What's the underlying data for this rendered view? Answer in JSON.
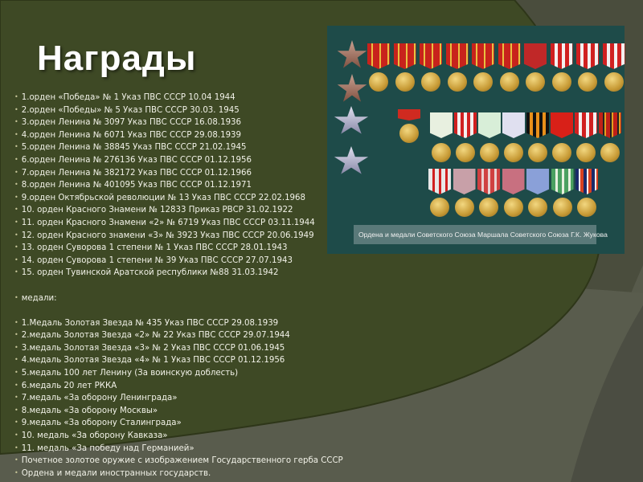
{
  "slide": {
    "title": "Награды",
    "orders": [
      "1.орден «Победа» № 1 Указ ПВС СССР  10.04 1944",
      "2.орден «Победы» № 5 Указ ПВС СССР  30.03. 1945",
      "3.орден Ленина № 3097 Указ ПВС СССР  16.08.1936",
      "4.орден Ленина № 6071 Указ ПВС СССР 29.08.1939",
      "5.орден Ленина № 38845 Указ ПВС СССР 21.02.1945",
      "6.орден Ленина № 276136 Указ ПВС СССР 01.12.1956",
      "7.орден Ленина № 382172 Указ ПВС СССР 01.12.1966",
      "8.орден Ленина № 401095 Указ ПВС СССР 01.12.1971",
      "9.орден Октябрьской революции № 13 Указ ПВС СССР  22.02.1968",
      "10.  орден Красного Знамени № 12833 Приказ РВСР  31.02.1922",
      "11.  орден Красного Знамени «2» № 6719 Указ ПВС СССР 03.11.1944",
      "12.  орден Красного знамени «3» № 3923 Указ ПВС СССР  20.06.1949",
      "13.  орден Суворова 1 степени № 1 Указ ПВС СССР 28.01.1943",
      "14.  орден Суворова 1 степени № 39  Указ ПВС СССР  27.07.1943",
      "15.  орден Тувинской Аратской республики №88 31.03.1942"
    ],
    "medals_heading": "медали:",
    "medals": [
      "1.Медаль Золотая Звезда № 435 Указ ПВС СССР  29.08.1939",
      "2.медаль Золотая Звезда «2» № 22  Указ ПВС СССР  29.07.1944",
      "3.медаль Золотая Звезда «3» № 2 Указ ПВС СССР 01.06.1945",
      "4.медаль Золотая Звезда «4» № 1 Указ ПВС СССР 01.12.1956",
      "5.медаль 100  лет Ленину (За воинскую доблесть)",
      "6.медаль 20  лет РККА",
      "7.медаль «За оборону Ленинграда»",
      "8.медаль «За оборону Москвы»",
      "9.медаль «За оборону Сталинграда»",
      "10.  медаль «За оборону Кавказа»",
      "11.  медаль «За победу над Германией»",
      "Почетное золотое оружие с изображением Государственного герба СССР",
      "Ордена и медали иностранных государств."
    ],
    "photo": {
      "caption": "Ордена и медали Советского Союза Маршала Советского Союза Г.К. Жукова",
      "background_color": "#1e4b49"
    },
    "colors": {
      "background_green": "#3e4925",
      "background_gray": "#575a4b",
      "text": "#f2f2e8"
    }
  }
}
